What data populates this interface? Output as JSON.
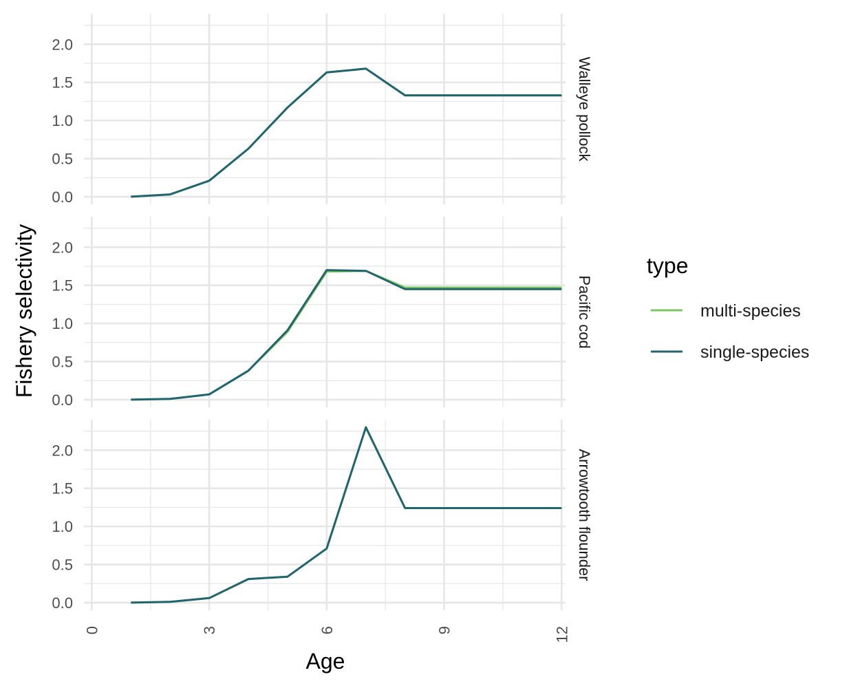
{
  "chart_data": {
    "type": "line",
    "xlabel": "Age",
    "ylabel": "Fishery selectivity",
    "xlim": [
      -0.2,
      12.1
    ],
    "ylim": [
      -0.1,
      2.4
    ],
    "x_ticks": [
      "0",
      "3",
      "6",
      "9",
      "12"
    ],
    "y_ticks": [
      "0.0",
      "0.5",
      "1.0",
      "1.5",
      "2.0"
    ],
    "grid": true,
    "legend": {
      "title": "type",
      "placement": "right",
      "entries": [
        "multi-species",
        "single-species"
      ]
    },
    "colors": {
      "multi-species": "#7ac95a",
      "single-species": "#22646f",
      "grid": "#e6e6e6"
    },
    "x": [
      1,
      2,
      3,
      4,
      5,
      6,
      7,
      8,
      9,
      10,
      11,
      12
    ],
    "panels": [
      {
        "label": "Walleye pollock",
        "series": [
          {
            "name": "multi-species",
            "values": [
              0.0,
              0.03,
              0.21,
              0.63,
              1.17,
              1.63,
              1.68,
              1.33,
              1.33,
              1.33,
              1.33,
              1.33
            ]
          },
          {
            "name": "single-species",
            "values": [
              0.0,
              0.03,
              0.21,
              0.63,
              1.17,
              1.63,
              1.68,
              1.33,
              1.33,
              1.33,
              1.33,
              1.33
            ]
          }
        ]
      },
      {
        "label": "Pacific cod",
        "series": [
          {
            "name": "multi-species",
            "values": [
              0.0,
              0.01,
              0.07,
              0.38,
              0.89,
              1.68,
              1.69,
              1.47,
              1.47,
              1.47,
              1.47,
              1.47
            ]
          },
          {
            "name": "single-species",
            "values": [
              0.0,
              0.01,
              0.07,
              0.38,
              0.91,
              1.7,
              1.69,
              1.45,
              1.45,
              1.45,
              1.45,
              1.45
            ]
          }
        ]
      },
      {
        "label": "Arrowtooth flounder",
        "series": [
          {
            "name": "multi-species",
            "values": [
              0.0,
              0.01,
              0.06,
              0.31,
              0.34,
              0.71,
              2.3,
              1.24,
              1.24,
              1.24,
              1.24,
              1.24
            ]
          },
          {
            "name": "single-species",
            "values": [
              0.0,
              0.01,
              0.06,
              0.31,
              0.34,
              0.71,
              2.3,
              1.24,
              1.24,
              1.24,
              1.24,
              1.24
            ]
          }
        ]
      }
    ]
  }
}
